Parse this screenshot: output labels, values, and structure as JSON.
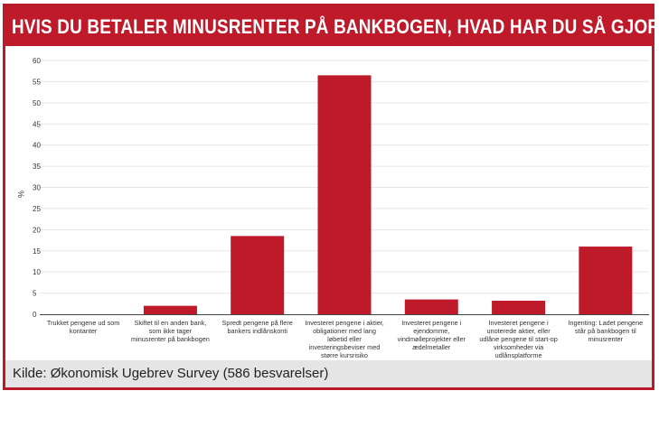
{
  "header": {
    "title": "HVIS DU BETALER MINUSRENTER PÅ BANKBOGEN, HVAD HAR DU SÅ GJORT?"
  },
  "footer": {
    "source": "Kilde: Økonomisk Ugebrev Survey (586 besvarelser)"
  },
  "colors": {
    "accent": "#be1a2a",
    "bar": "#be1a2a",
    "grid": "#e6e6e6",
    "footer_bg": "#e5e5e5"
  },
  "chart_data": {
    "type": "bar",
    "title": "HVIS DU BETALER MINUSRENTER PÅ BANKBOGEN, HVAD HAR DU SÅ GJORT?",
    "xlabel": "",
    "ylabel": "%",
    "ylim": [
      0,
      60
    ],
    "yticks": [
      0,
      5,
      10,
      15,
      20,
      25,
      30,
      35,
      40,
      45,
      50,
      55,
      60
    ],
    "grid": true,
    "categories": [
      [
        "Trukket pengene ud som",
        "kontanter"
      ],
      [
        "Skiftet til en anden bank,",
        "som ikke tager",
        "minusrenter på bankbogen"
      ],
      [
        "Spredt pengene på flere",
        "bankers indlånskonti"
      ],
      [
        "Investeret pengene i aktier,",
        "obligationer med lang",
        "løbetid eller",
        "investeringsbeviser med",
        "større kursrisiko"
      ],
      [
        "Investeret pengene i",
        "ejendomme,",
        "vindmølleprojekter eller",
        "ædelmetaller"
      ],
      [
        "Investeret pengene i",
        "unoterede aktier, eller",
        "udlåne pengene til start-op",
        "virksomheder via",
        "udlånsplatforme"
      ],
      [
        "Ingenting: Ladet pengene",
        "står på bankbogen til",
        "minusrenter"
      ]
    ],
    "values": [
      0,
      2,
      18.5,
      56.5,
      3.5,
      3.2,
      16
    ]
  }
}
